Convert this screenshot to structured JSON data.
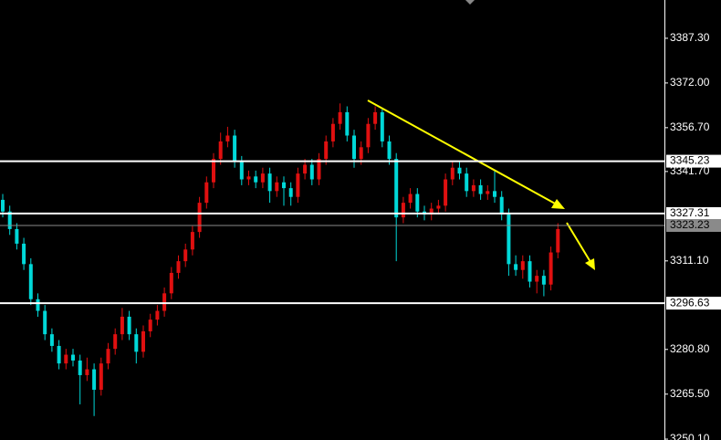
{
  "chart_data": {
    "type": "candlestick",
    "open": [
      3332,
      3328,
      3322,
      3317,
      3310,
      3298,
      3294,
      3286,
      3282,
      3276,
      3279,
      3277,
      3272,
      3274,
      3267,
      3276,
      3281,
      3286,
      3292,
      3286,
      3280,
      3287,
      3291,
      3294,
      3300,
      3307,
      3311,
      3315,
      3321,
      3331,
      3338,
      3346,
      3352,
      3354,
      3345,
      3339,
      3340,
      3338,
      3341,
      3335,
      3338,
      3336,
      3333,
      3341,
      3344,
      3339,
      3346,
      3352,
      3358,
      3362,
      3354,
      3346,
      3350,
      3358,
      3362,
      3352,
      3346,
      3326,
      3331,
      3334,
      3328,
      3327,
      3329,
      3330,
      3339,
      3343,
      3341,
      3335,
      3337,
      3334,
      3335,
      3333,
      3327,
      3310,
      3308,
      3311,
      3304,
      3306,
      3303,
      3314
    ],
    "high": [
      3334,
      3330,
      3324,
      3319,
      3312,
      3300,
      3296,
      3288,
      3284,
      3281,
      3281,
      3279,
      3278,
      3276,
      3278,
      3283,
      3288,
      3295,
      3294,
      3288,
      3289,
      3293,
      3296,
      3302,
      3309,
      3313,
      3317,
      3323,
      3333,
      3340,
      3348,
      3355,
      3357,
      3356,
      3347,
      3342,
      3342,
      3343,
      3343,
      3340,
      3340,
      3338,
      3343,
      3346,
      3346,
      3348,
      3354,
      3360,
      3365,
      3364,
      3356,
      3352,
      3360,
      3364,
      3363,
      3354,
      3348,
      3333,
      3336,
      3336,
      3330,
      3331,
      3332,
      3341,
      3345,
      3345,
      3343,
      3339,
      3339,
      3337,
      3342,
      3335,
      3329,
      3313,
      3313,
      3313,
      3308,
      3308,
      3316,
      3324
    ],
    "low": [
      3326,
      3320,
      3315,
      3308,
      3296,
      3292,
      3284,
      3280,
      3274,
      3274,
      3275,
      3262,
      3270,
      3258,
      3265,
      3274,
      3279,
      3284,
      3284,
      3276,
      3278,
      3285,
      3289,
      3292,
      3298,
      3305,
      3309,
      3313,
      3319,
      3329,
      3336,
      3344,
      3350,
      3343,
      3337,
      3337,
      3336,
      3336,
      3331,
      3333,
      3330,
      3330,
      3331,
      3339,
      3337,
      3337,
      3344,
      3350,
      3356,
      3352,
      3343,
      3344,
      3348,
      3356,
      3350,
      3344,
      3311,
      3324,
      3329,
      3326,
      3325,
      3325,
      3327,
      3328,
      3337,
      3339,
      3333,
      3333,
      3332,
      3332,
      3331,
      3325,
      3306,
      3306,
      3305,
      3302,
      3300,
      3299,
      3301,
      3312
    ],
    "close": [
      3328,
      3322,
      3317,
      3310,
      3298,
      3294,
      3286,
      3282,
      3276,
      3279,
      3277,
      3272,
      3274,
      3267,
      3276,
      3281,
      3286,
      3292,
      3286,
      3280,
      3287,
      3291,
      3294,
      3300,
      3307,
      3311,
      3315,
      3321,
      3331,
      3338,
      3346,
      3352,
      3354,
      3345,
      3339,
      3340,
      3338,
      3341,
      3335,
      3338,
      3336,
      3333,
      3341,
      3344,
      3339,
      3346,
      3352,
      3358,
      3362,
      3354,
      3346,
      3350,
      3358,
      3362,
      3352,
      3346,
      3326,
      3331,
      3334,
      3328,
      3327,
      3329,
      3330,
      3339,
      3343,
      3341,
      3335,
      3337,
      3334,
      3335,
      3333,
      3327,
      3310,
      3308,
      3311,
      3304,
      3306,
      3303,
      3314,
      3322
    ],
    "up_color": "#e01010",
    "down_color": "#00d8d8",
    "ylim": [
      3249.8,
      3400.4
    ],
    "yticks": [
      {
        "value": 3387.3,
        "label": "3387.30"
      },
      {
        "value": 3372,
        "label": "3372.00"
      },
      {
        "value": 3356.7,
        "label": "3356.70"
      },
      {
        "value": 3341.7,
        "label": "3341.70"
      },
      {
        "value": 3311.1,
        "label": "3311.10"
      },
      {
        "value": 3280.8,
        "label": "3280.80"
      },
      {
        "value": 3265.5,
        "label": "3265.50"
      },
      {
        "value": 3250.1,
        "label": "3250.10"
      }
    ],
    "levels": [
      {
        "value": 3345.23,
        "label": "3345.23",
        "color": "#ffffff"
      },
      {
        "value": 3327.31,
        "label": "3327.31",
        "color": "#ffffff"
      },
      {
        "value": 3323.23,
        "label": "3323.23",
        "color": "#8a8a8a"
      },
      {
        "value": 3296.63,
        "label": "3296.63",
        "color": "#ffffff"
      }
    ]
  }
}
